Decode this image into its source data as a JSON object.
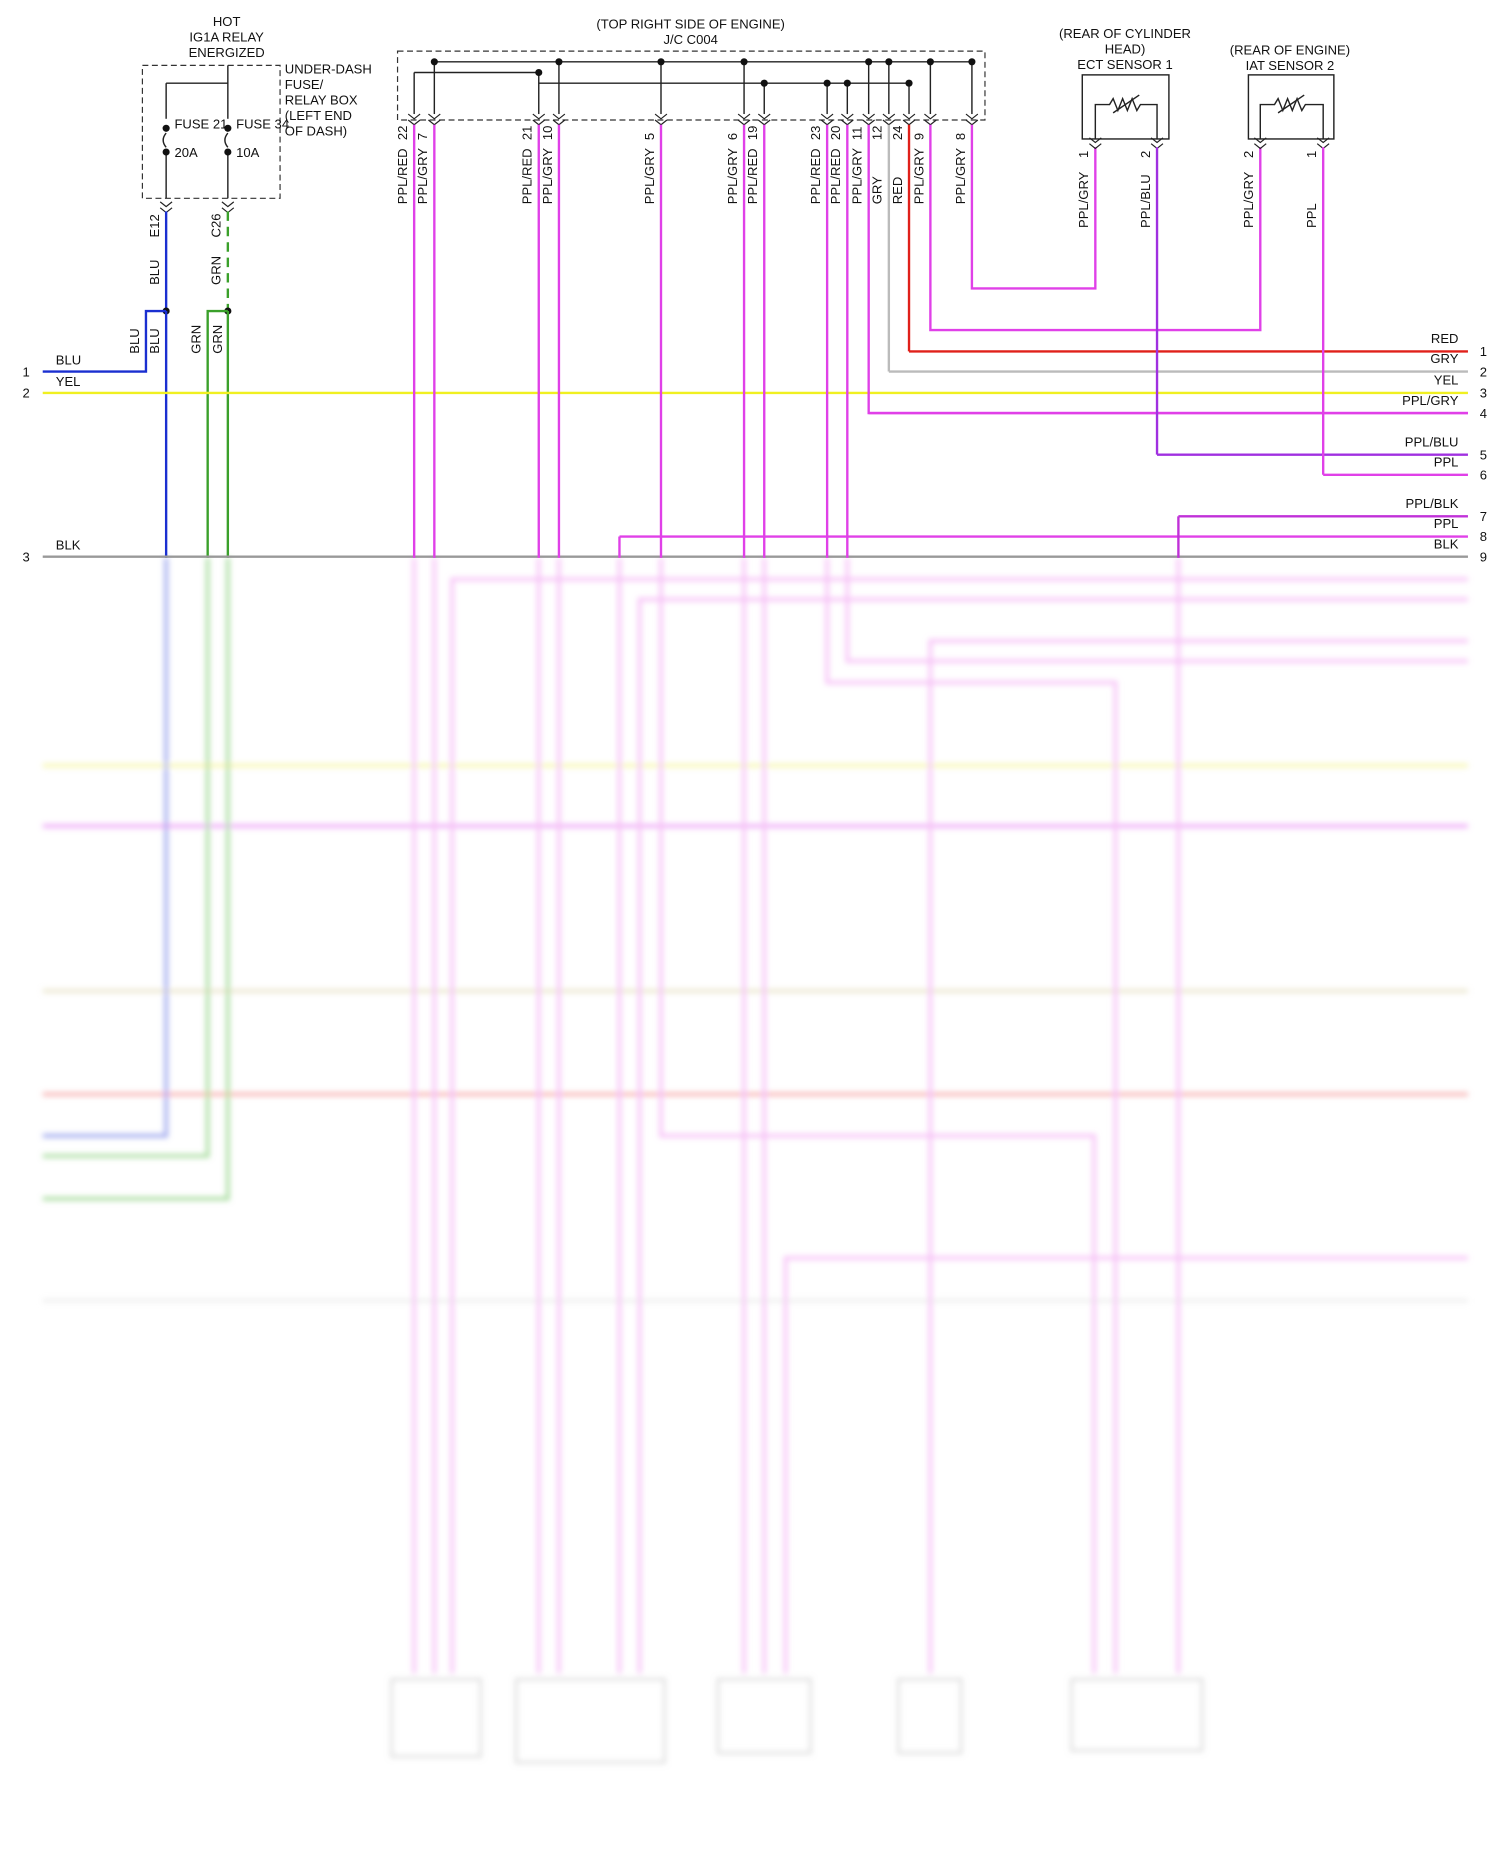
{
  "relay": {
    "lines": [
      "HOT",
      "IG1A RELAY",
      "ENERGIZED"
    ]
  },
  "fuse_box": {
    "lines": [
      "UNDER-DASH",
      "FUSE/",
      "RELAY BOX",
      "(LEFT END",
      "OF DASH)"
    ],
    "fuses": [
      {
        "name": "FUSE 21",
        "rating": "20A",
        "connector": "E12",
        "wire": "BLU",
        "color": "#1a2fd0"
      },
      {
        "name": "FUSE 34",
        "rating": "10A",
        "connector": "C26",
        "wire": "GRN",
        "color": "#3aa02a"
      }
    ]
  },
  "splice_wires": [
    {
      "wire": "BLU",
      "color": "#1a2fd0"
    },
    {
      "wire": "BLU",
      "color": "#1a2fd0"
    },
    {
      "wire": "GRN",
      "color": "#3aa02a"
    },
    {
      "wire": "GRN",
      "color": "#3aa02a"
    }
  ],
  "junction": {
    "lines": [
      "(TOP RIGHT SIDE OF ENGINE)",
      "J/C C004"
    ],
    "pins": [
      {
        "pin": "22",
        "wire": "PPL/RED",
        "color": "#e040e8"
      },
      {
        "pin": "7",
        "wire": "PPL/GRY",
        "color": "#e040e8"
      },
      {
        "pin": "21",
        "wire": "PPL/RED",
        "color": "#e040e8"
      },
      {
        "pin": "10",
        "wire": "PPL/GRY",
        "color": "#e040e8"
      },
      {
        "pin": "5",
        "wire": "PPL/GRY",
        "color": "#e040e8"
      },
      {
        "pin": "6",
        "wire": "PPL/GRY",
        "color": "#e040e8"
      },
      {
        "pin": "19",
        "wire": "PPL/RED",
        "color": "#e040e8"
      },
      {
        "pin": "23",
        "wire": "PPL/RED",
        "color": "#e040e8"
      },
      {
        "pin": "20",
        "wire": "PPL/RED",
        "color": "#e040e8"
      },
      {
        "pin": "11",
        "wire": "PPL/GRY",
        "color": "#e040e8"
      },
      {
        "pin": "12",
        "wire": "GRY",
        "color": "#bbbbbb"
      },
      {
        "pin": "24",
        "wire": "RED",
        "color": "#e0201a"
      },
      {
        "pin": "9",
        "wire": "PPL/GRY",
        "color": "#e040e8"
      },
      {
        "pin": "8",
        "wire": "PPL/GRY",
        "color": "#e040e8"
      }
    ]
  },
  "sensors": [
    {
      "lines": [
        "(REAR OF CYLINDER",
        "HEAD)",
        "ECT SENSOR 1"
      ],
      "pins": [
        {
          "pin": "1",
          "wire": "PPL/GRY",
          "color": "#e040e8"
        },
        {
          "pin": "2",
          "wire": "PPL/BLU",
          "color": "#a030e0"
        }
      ]
    },
    {
      "lines": [
        "(REAR OF ENGINE)",
        "IAT SENSOR 2"
      ],
      "pins": [
        {
          "pin": "2",
          "wire": "PPL/GRY",
          "color": "#e040e8"
        },
        {
          "pin": "1",
          "wire": "PPL",
          "color": "#e040e8"
        }
      ]
    }
  ],
  "left_connector": [
    {
      "pin": "1",
      "wire": "BLU",
      "color": "#1a2fd0"
    },
    {
      "pin": "2",
      "wire": "YEL",
      "color": "#f0f020"
    },
    {
      "pin": "3",
      "wire": "BLK",
      "color": "#999999"
    }
  ],
  "right_connector": [
    {
      "pin": "1",
      "wire": "RED",
      "color": "#e0201a"
    },
    {
      "pin": "2",
      "wire": "GRY",
      "color": "#bbbbbb"
    },
    {
      "pin": "3",
      "wire": "YEL",
      "color": "#f0f020"
    },
    {
      "pin": "4",
      "wire": "PPL/GRY",
      "color": "#e040e8"
    },
    {
      "pin": "5",
      "wire": "PPL/BLU",
      "color": "#a030e0"
    },
    {
      "pin": "6",
      "wire": "PPL",
      "color": "#e040e8"
    },
    {
      "pin": "7",
      "wire": "PPL/BLK",
      "color": "#c030d8"
    },
    {
      "pin": "8",
      "wire": "PPL",
      "color": "#e040e8"
    },
    {
      "pin": "9",
      "wire": "BLK",
      "color": "#999999"
    }
  ]
}
